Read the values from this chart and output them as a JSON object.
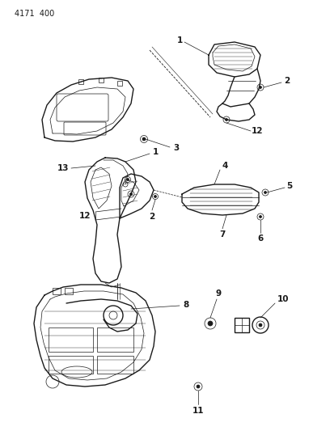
{
  "header_text": "4171  400",
  "background_color": "#ffffff",
  "line_color": "#1a1a1a",
  "fig_width": 4.08,
  "fig_height": 5.33,
  "dpi": 100,
  "header_fontsize": 7,
  "label_fontsize": 7.5,
  "lw_outer": 1.0,
  "lw_inner": 0.5,
  "lw_thin": 0.4
}
